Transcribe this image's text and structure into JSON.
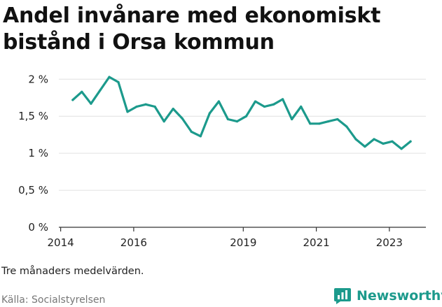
{
  "title": "Andel invånare med ekonomiskt bistånd i Orsa kommun",
  "note": "Tre månaders medelvärden.",
  "source": "Källa: Socialstyrelsen",
  "brand": {
    "name": "Newsworthy",
    "icon": "bar-chart-logo-icon"
  },
  "colors": {
    "line": "#1c9a8c",
    "grid": "#e0e0e0",
    "text": "#222222"
  },
  "chart_data": {
    "type": "line",
    "title": "Andel invånare med ekonomiskt bistånd i Orsa kommun",
    "xlabel": "",
    "ylabel": "",
    "x_tick_labels": [
      "2014",
      "2016",
      "2019",
      "2021",
      "2023"
    ],
    "x_ticks": [
      2014,
      2016,
      2019,
      2021,
      2023
    ],
    "y_tick_labels": [
      "0 %",
      "0,5 %",
      "1 %",
      "1,5 %",
      "2 %"
    ],
    "y_ticks": [
      0,
      0.5,
      1,
      1.5,
      2
    ],
    "xlim": [
      2013.95,
      2024
    ],
    "ylim": [
      0,
      2.05
    ],
    "grid": true,
    "series": [
      {
        "values": [
          {
            "x": 2014.33,
            "y": 1.72
          },
          {
            "x": 2014.58,
            "y": 1.83
          },
          {
            "x": 2014.83,
            "y": 1.67
          },
          {
            "x": 2015.08,
            "y": 1.85
          },
          {
            "x": 2015.33,
            "y": 2.03
          },
          {
            "x": 2015.58,
            "y": 1.96
          },
          {
            "x": 2015.83,
            "y": 1.56
          },
          {
            "x": 2016.08,
            "y": 1.63
          },
          {
            "x": 2016.33,
            "y": 1.66
          },
          {
            "x": 2016.58,
            "y": 1.63
          },
          {
            "x": 2016.83,
            "y": 1.43
          },
          {
            "x": 2017.08,
            "y": 1.6
          },
          {
            "x": 2017.33,
            "y": 1.47
          },
          {
            "x": 2017.58,
            "y": 1.29
          },
          {
            "x": 2017.83,
            "y": 1.23
          },
          {
            "x": 2018.08,
            "y": 1.54
          },
          {
            "x": 2018.33,
            "y": 1.7
          },
          {
            "x": 2018.58,
            "y": 1.46
          },
          {
            "x": 2018.83,
            "y": 1.43
          },
          {
            "x": 2019.08,
            "y": 1.5
          },
          {
            "x": 2019.33,
            "y": 1.7
          },
          {
            "x": 2019.58,
            "y": 1.63
          },
          {
            "x": 2019.83,
            "y": 1.66
          },
          {
            "x": 2020.08,
            "y": 1.73
          },
          {
            "x": 2020.33,
            "y": 1.46
          },
          {
            "x": 2020.58,
            "y": 1.63
          },
          {
            "x": 2020.83,
            "y": 1.4
          },
          {
            "x": 2021.08,
            "y": 1.4
          },
          {
            "x": 2021.33,
            "y": 1.43
          },
          {
            "x": 2021.58,
            "y": 1.46
          },
          {
            "x": 2021.83,
            "y": 1.36
          },
          {
            "x": 2022.08,
            "y": 1.19
          },
          {
            "x": 2022.33,
            "y": 1.09
          },
          {
            "x": 2022.58,
            "y": 1.19
          },
          {
            "x": 2022.83,
            "y": 1.13
          },
          {
            "x": 2023.08,
            "y": 1.16
          },
          {
            "x": 2023.33,
            "y": 1.06
          },
          {
            "x": 2023.58,
            "y": 1.16
          }
        ]
      }
    ]
  }
}
